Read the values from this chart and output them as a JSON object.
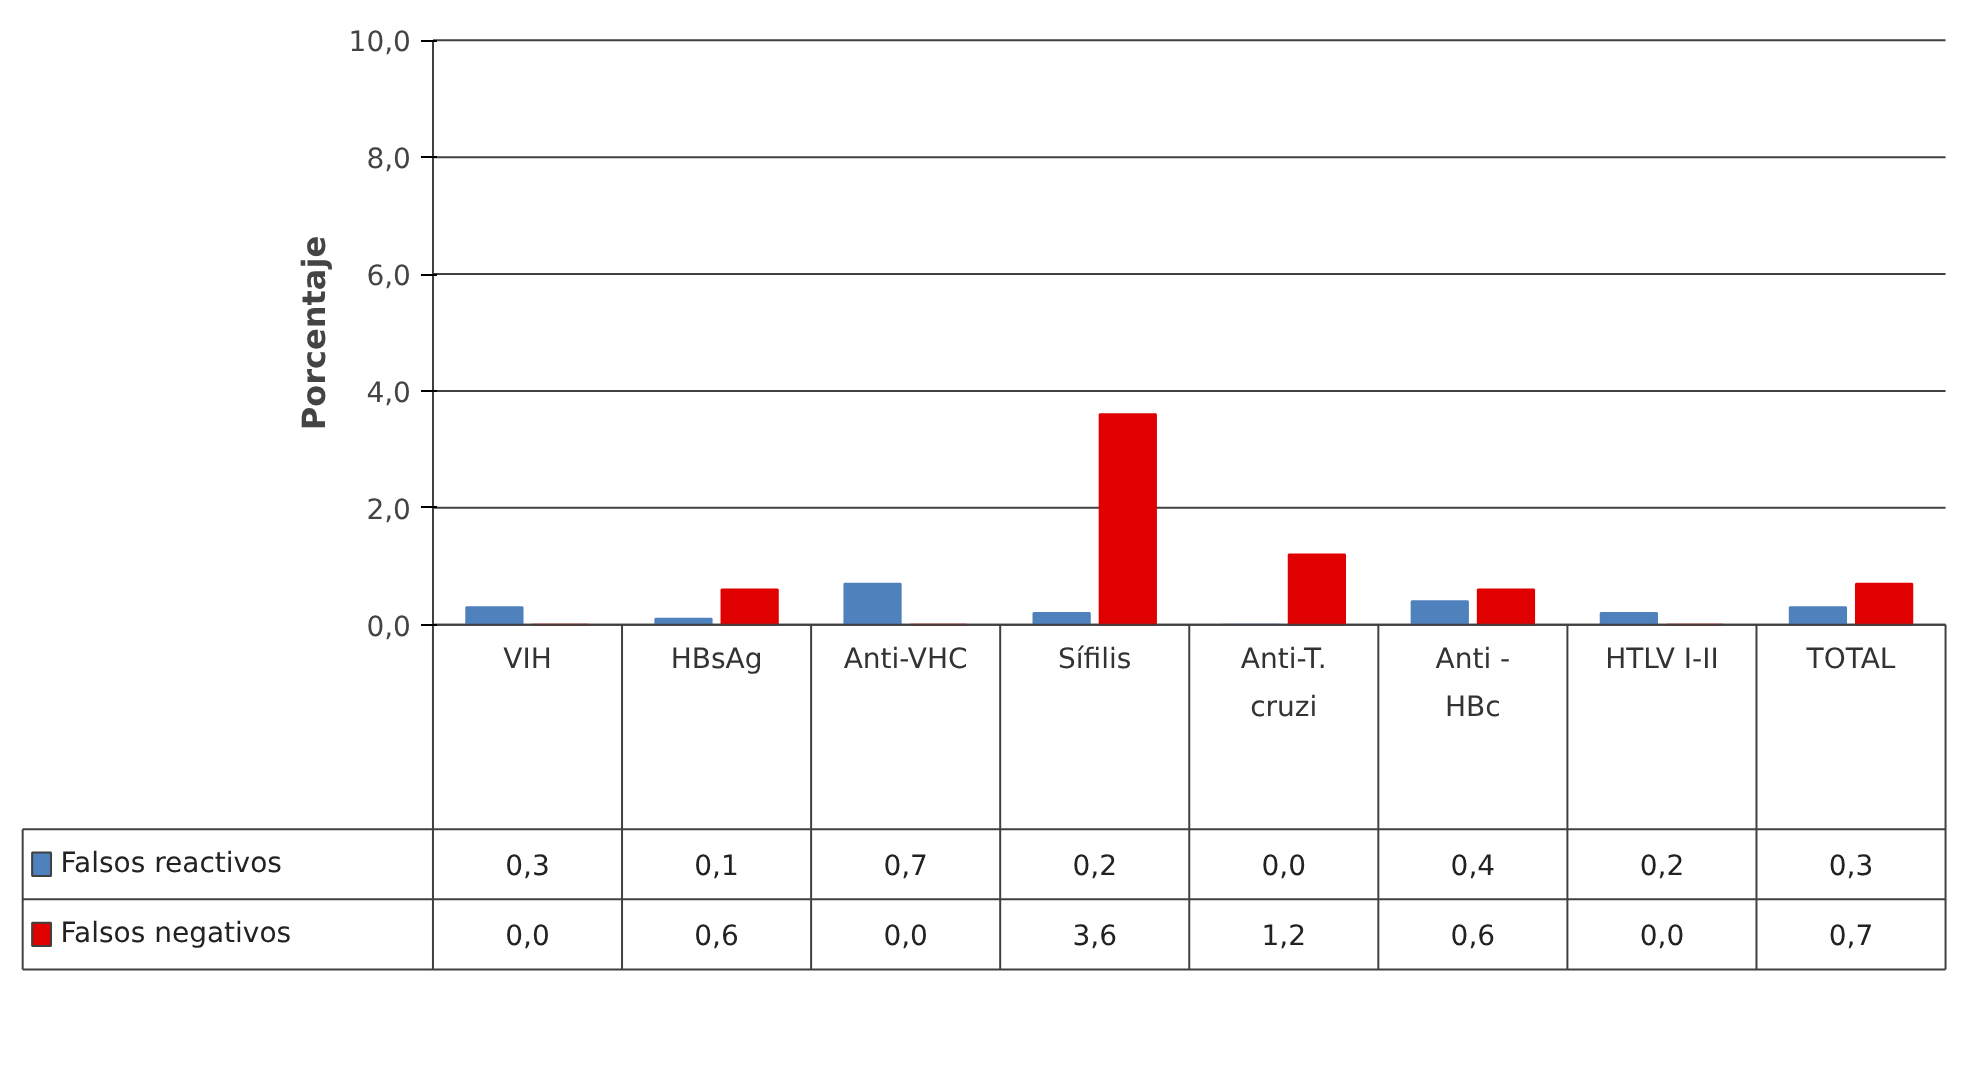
{
  "chart_data": {
    "type": "bar",
    "ylabel": "Porcentaje",
    "categories": [
      "VIH",
      "HBsAg",
      "Anti-VHC",
      "Sífilis",
      "Anti-T. cruzi",
      "Anti - HBc",
      "HTLV I-II",
      "TOTAL"
    ],
    "series": [
      {
        "name": "Falsos reactivos",
        "color": "#4f81bd",
        "values": [
          0.3,
          0.1,
          0.7,
          0.2,
          0.0,
          0.4,
          0.2,
          0.3
        ],
        "value_labels": [
          "0,3",
          "0,1",
          "0,7",
          "0,2",
          "0,0",
          "0,4",
          "0,2",
          "0,3"
        ]
      },
      {
        "name": "Falsos negativos",
        "color": "#e00000",
        "values": [
          0.0,
          0.6,
          0.0,
          3.6,
          1.2,
          0.6,
          0.0,
          0.7
        ],
        "value_labels": [
          "0,0",
          "0,6",
          "0,0",
          "3,6",
          "1,2",
          "0,6",
          "0,0",
          "0,7"
        ]
      }
    ],
    "ylim": [
      0,
      10
    ],
    "yticks": [
      {
        "value": 0,
        "label": "0,0"
      },
      {
        "value": 2,
        "label": "2,0"
      },
      {
        "value": 4,
        "label": "4,0"
      },
      {
        "value": 6,
        "label": "6,0"
      },
      {
        "value": 8,
        "label": "8,0"
      },
      {
        "value": 10,
        "label": "10,0"
      }
    ],
    "grid": "y",
    "legend": "bottom"
  }
}
